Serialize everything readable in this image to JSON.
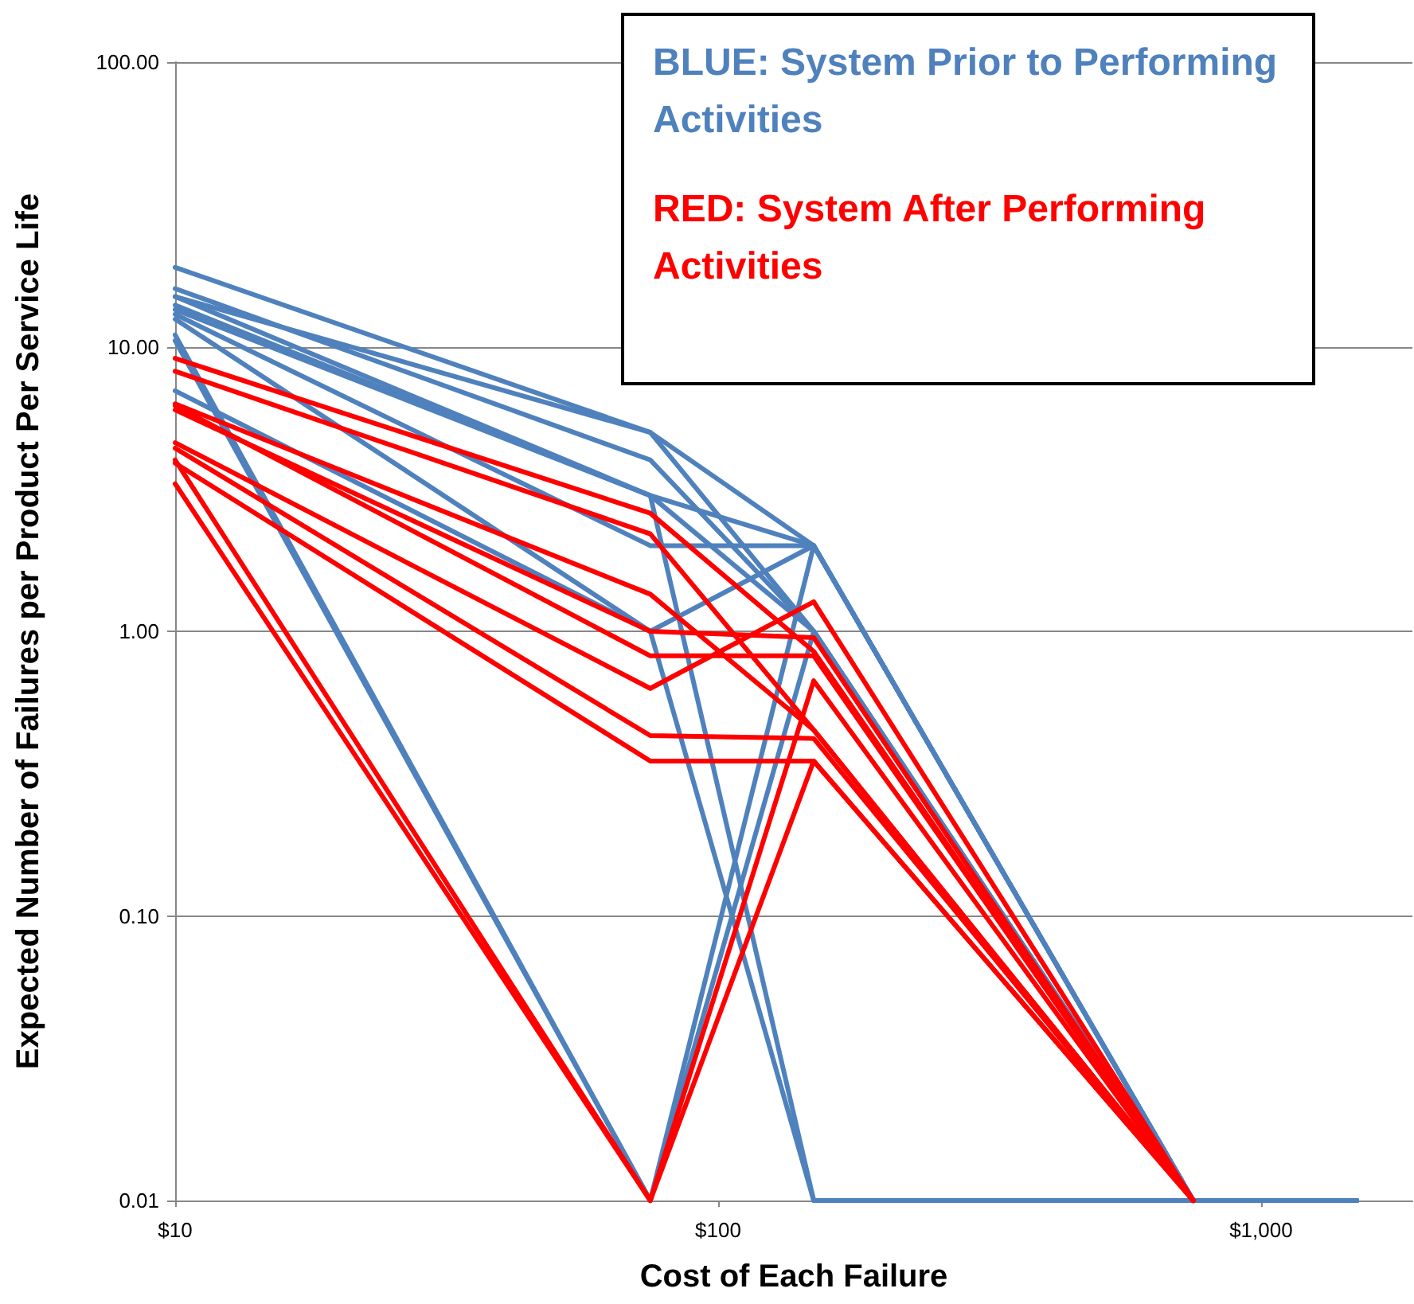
{
  "chart_data": {
    "type": "line",
    "xlabel": "Cost of Each Failure",
    "ylabel": "Expected Number of Failures per Product Per Service Life",
    "annotations": [
      "BLUE: System Prior to Performing Activities",
      "RED: System After Performing Activities"
    ],
    "log": "xy",
    "grid": "y",
    "marker": "none",
    "line_style": "solid",
    "x": [
      10,
      75,
      150,
      750,
      1500
    ],
    "xlim": [
      10,
      1900
    ],
    "xticks": [
      {
        "value": 10,
        "label": "$10"
      },
      {
        "value": 100,
        "label": "$100"
      },
      {
        "value": 1000,
        "label": "$1,000"
      }
    ],
    "ylim": [
      0.01,
      100
    ],
    "yticks": [
      {
        "value": 0.01,
        "label": "0.01"
      },
      {
        "value": 0.1,
        "label": "0.10"
      },
      {
        "value": 1,
        "label": "1.00"
      },
      {
        "value": 10,
        "label": "10.00"
      },
      {
        "value": 100,
        "label": "100.00"
      }
    ],
    "series": [
      {
        "color": "#4f81bd",
        "values": [
          19,
          5,
          2,
          0.01,
          0.01
        ]
      },
      {
        "color": "#4f81bd",
        "values": [
          16,
          4,
          1,
          0.01,
          0.01
        ]
      },
      {
        "color": "#4f81bd",
        "values": [
          15,
          5,
          1,
          0.01,
          0.01
        ]
      },
      {
        "color": "#4f81bd",
        "values": [
          14,
          3,
          2,
          0.01,
          0.01
        ]
      },
      {
        "color": "#4f81bd",
        "values": [
          13.5,
          3,
          1,
          0.01,
          0.01
        ]
      },
      {
        "color": "#4f81bd",
        "values": [
          13,
          2,
          2,
          0.01,
          0.01
        ]
      },
      {
        "color": "#4f81bd",
        "values": [
          12.5,
          1,
          2,
          0.01,
          0.01
        ]
      },
      {
        "color": "#4f81bd",
        "values": [
          11,
          0.01,
          1,
          0.01,
          0.01
        ]
      },
      {
        "color": "#4f81bd",
        "values": [
          10.5,
          0.01,
          2,
          0.01,
          0.01
        ]
      },
      {
        "color": "#4f81bd",
        "values": [
          7,
          1,
          0.01,
          0.01,
          0.01
        ]
      },
      {
        "color": "#4f81bd",
        "values": [
          15,
          3,
          0.01,
          0.01,
          0.01
        ]
      },
      {
        "color": "#ff0000",
        "values": [
          9.1,
          2.6,
          0.85,
          0.01,
          null
        ]
      },
      {
        "color": "#ff0000",
        "values": [
          8.2,
          2.2,
          0.45,
          0.01,
          null
        ]
      },
      {
        "color": "#ff0000",
        "values": [
          6.3,
          1.35,
          0.45,
          0.01,
          null
        ]
      },
      {
        "color": "#ff0000",
        "values": [
          6.0,
          1.0,
          0.95,
          0.01,
          null
        ]
      },
      {
        "color": "#ff0000",
        "values": [
          4.6,
          0.63,
          1.27,
          0.01,
          null
        ]
      },
      {
        "color": "#ff0000",
        "values": [
          4.4,
          0.43,
          0.42,
          0.01,
          null
        ]
      },
      {
        "color": "#ff0000",
        "values": [
          3.9,
          0.35,
          0.35,
          0.01,
          null
        ]
      },
      {
        "color": "#ff0000",
        "values": [
          3.3,
          0.01,
          0.67,
          0.01,
          null
        ]
      },
      {
        "color": "#ff0000",
        "values": [
          4.0,
          0.01,
          0.35,
          0.01,
          null
        ]
      },
      {
        "color": "#ff0000",
        "values": [
          6.2,
          0.82,
          0.82,
          0.01,
          null
        ]
      }
    ]
  }
}
